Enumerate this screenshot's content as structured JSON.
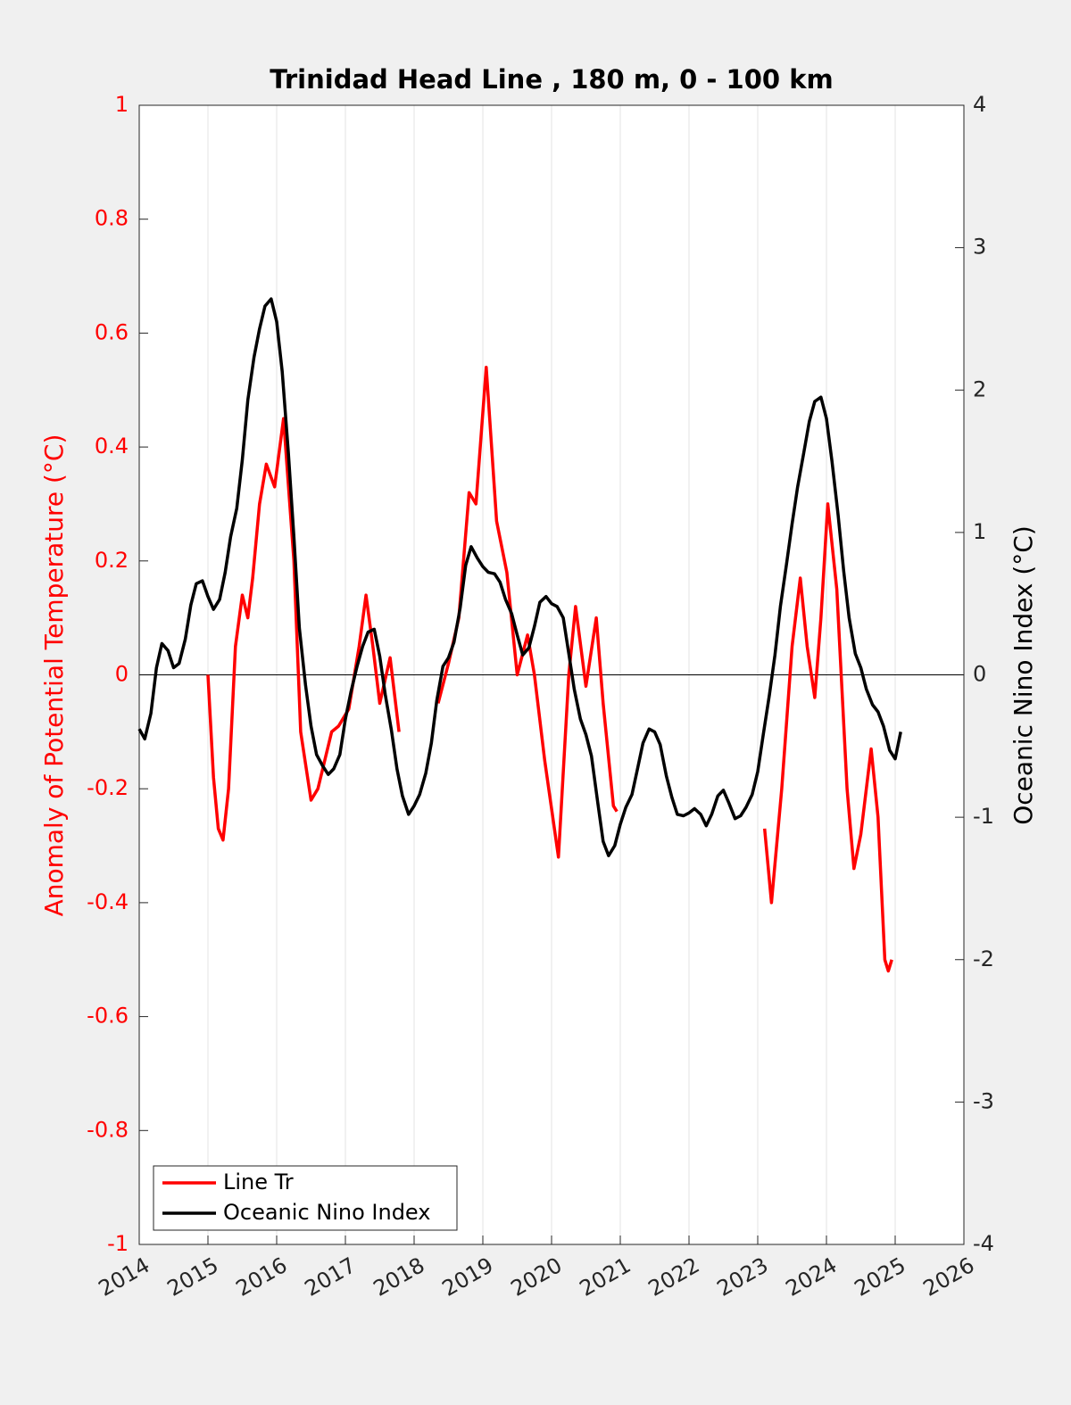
{
  "chart_data": {
    "type": "line",
    "title": "Trinidad Head Line , 180 m, 0 - 100 km",
    "ylabel": "Anomaly of Potential Temperature (°C)",
    "y2label": "Oceanic Nino Index (°C)",
    "xlim": [
      2014,
      2026
    ],
    "xticks": [
      2014,
      2015,
      2016,
      2017,
      2018,
      2019,
      2020,
      2021,
      2022,
      2023,
      2024,
      2025,
      2026
    ],
    "ylim": [
      -1,
      1
    ],
    "yticks": [
      -1,
      -0.8,
      -0.6,
      -0.4,
      -0.2,
      0,
      0.2,
      0.4,
      0.6,
      0.8,
      1
    ],
    "y2lim": [
      -4,
      4
    ],
    "y2ticks": [
      -4,
      -3,
      -2,
      -1,
      0,
      1,
      2,
      3,
      4
    ],
    "grid": "x",
    "legend": "lower left",
    "ylabel_color": "#ff0000",
    "series": [
      {
        "name": "Line Tr",
        "color": "#ff0000",
        "x": [
          2015.0,
          2015.08,
          2015.15,
          2015.22,
          2015.3,
          2015.4,
          2015.5,
          2015.58,
          2015.65,
          2015.75,
          2015.85,
          2015.97,
          2016.1,
          2016.25,
          2016.35,
          2016.5,
          2016.6,
          2016.8,
          2016.9,
          2017.05,
          2017.2,
          2017.3,
          2017.4,
          2017.5,
          2017.65,
          2017.78,
          null,
          2018.35,
          2018.5,
          2018.65,
          2018.8,
          2018.9,
          2019.05,
          2019.2,
          2019.35,
          2019.5,
          2019.65,
          2019.75,
          2019.9,
          2020.1,
          2020.25,
          2020.35,
          2020.5,
          2020.65,
          2020.75,
          2020.9,
          2020.95,
          null,
          2023.1,
          2023.2,
          2023.35,
          2023.5,
          2023.62,
          2023.72,
          2023.83,
          2023.92,
          2024.02,
          2024.15,
          2024.3,
          2024.4,
          2024.5,
          2024.65,
          2024.75,
          2024.85,
          2024.9,
          2024.95
        ],
        "values": [
          0.0,
          -0.18,
          -0.27,
          -0.29,
          -0.2,
          0.05,
          0.14,
          0.1,
          0.17,
          0.3,
          0.37,
          0.33,
          0.45,
          0.2,
          -0.1,
          -0.22,
          -0.2,
          -0.1,
          -0.09,
          -0.06,
          0.05,
          0.14,
          0.05,
          -0.05,
          0.03,
          -0.1,
          null,
          -0.05,
          0.02,
          0.1,
          0.32,
          0.3,
          0.54,
          0.27,
          0.18,
          0.0,
          0.07,
          0.0,
          -0.15,
          -0.32,
          0.0,
          0.12,
          -0.02,
          0.1,
          -0.05,
          -0.23,
          -0.24,
          null,
          -0.27,
          -0.4,
          -0.2,
          0.05,
          0.17,
          0.05,
          -0.04,
          0.1,
          0.3,
          0.15,
          -0.2,
          -0.34,
          -0.28,
          -0.13,
          -0.25,
          -0.5,
          -0.52,
          -0.5
        ]
      },
      {
        "name": "Oceanic Nino Index",
        "color": "#000000",
        "axis": "y2",
        "x": [
          2014.0,
          2014.08,
          2014.17,
          2014.25,
          2014.33,
          2014.42,
          2014.5,
          2014.58,
          2014.67,
          2014.75,
          2014.83,
          2014.92,
          2015.0,
          2015.08,
          2015.17,
          2015.25,
          2015.33,
          2015.42,
          2015.5,
          2015.58,
          2015.67,
          2015.75,
          2015.83,
          2015.92,
          2016.0,
          2016.08,
          2016.17,
          2016.25,
          2016.33,
          2016.42,
          2016.5,
          2016.58,
          2016.67,
          2016.75,
          2016.83,
          2016.92,
          2017.0,
          2017.08,
          2017.17,
          2017.25,
          2017.33,
          2017.42,
          2017.5,
          2017.58,
          2017.67,
          2017.75,
          2017.83,
          2017.92,
          2018.0,
          2018.08,
          2018.17,
          2018.25,
          2018.33,
          2018.42,
          2018.5,
          2018.58,
          2018.67,
          2018.75,
          2018.83,
          2018.92,
          2019.0,
          2019.08,
          2019.17,
          2019.25,
          2019.33,
          2019.42,
          2019.5,
          2019.58,
          2019.67,
          2019.75,
          2019.83,
          2019.92,
          2020.0,
          2020.08,
          2020.17,
          2020.25,
          2020.33,
          2020.42,
          2020.5,
          2020.58,
          2020.67,
          2020.75,
          2020.83,
          2020.92,
          2021.0,
          2021.08,
          2021.17,
          2021.25,
          2021.33,
          2021.42,
          2021.5,
          2021.58,
          2021.67,
          2021.75,
          2021.83,
          2021.92,
          2022.0,
          2022.08,
          2022.17,
          2022.25,
          2022.33,
          2022.42,
          2022.5,
          2022.58,
          2022.67,
          2022.75,
          2022.83,
          2022.92,
          2023.0,
          2023.08,
          2023.17,
          2023.25,
          2023.33,
          2023.42,
          2023.5,
          2023.58,
          2023.67,
          2023.75,
          2023.83,
          2023.92,
          2024.0,
          2024.08,
          2024.17,
          2024.25,
          2024.33,
          2024.42,
          2024.5,
          2024.58,
          2024.67,
          2024.75,
          2024.83,
          2024.92,
          2025.0,
          2025.08
        ],
        "values": [
          -0.38,
          -0.45,
          -0.27,
          0.05,
          0.22,
          0.17,
          0.05,
          0.08,
          0.25,
          0.49,
          0.64,
          0.66,
          0.55,
          0.46,
          0.53,
          0.72,
          0.97,
          1.17,
          1.51,
          1.93,
          2.23,
          2.43,
          2.59,
          2.64,
          2.48,
          2.13,
          1.56,
          0.97,
          0.33,
          -0.07,
          -0.36,
          -0.56,
          -0.64,
          -0.7,
          -0.66,
          -0.56,
          -0.31,
          -0.12,
          0.06,
          0.2,
          0.3,
          0.32,
          0.13,
          -0.14,
          -0.39,
          -0.66,
          -0.85,
          -0.98,
          -0.92,
          -0.84,
          -0.69,
          -0.48,
          -0.18,
          0.06,
          0.12,
          0.23,
          0.47,
          0.77,
          0.9,
          0.82,
          0.76,
          0.72,
          0.71,
          0.65,
          0.53,
          0.43,
          0.28,
          0.14,
          0.19,
          0.34,
          0.51,
          0.55,
          0.5,
          0.48,
          0.4,
          0.15,
          -0.1,
          -0.31,
          -0.42,
          -0.57,
          -0.89,
          -1.17,
          -1.27,
          -1.2,
          -1.05,
          -0.93,
          -0.84,
          -0.66,
          -0.48,
          -0.38,
          -0.4,
          -0.49,
          -0.71,
          -0.86,
          -0.98,
          -0.99,
          -0.97,
          -0.94,
          -0.98,
          -1.06,
          -0.98,
          -0.85,
          -0.81,
          -0.9,
          -1.01,
          -0.99,
          -0.93,
          -0.84,
          -0.68,
          -0.42,
          -0.14,
          0.14,
          0.48,
          0.78,
          1.06,
          1.32,
          1.56,
          1.78,
          1.92,
          1.95,
          1.8,
          1.5,
          1.12,
          0.73,
          0.4,
          0.15,
          0.05,
          -0.1,
          -0.21,
          -0.26,
          -0.36,
          -0.53,
          -0.59,
          -0.4
        ]
      }
    ]
  }
}
